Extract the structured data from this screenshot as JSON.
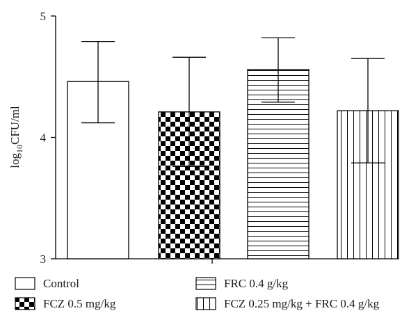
{
  "chart_data": {
    "type": "bar",
    "ylabel": {
      "base": "log",
      "subscript": "10",
      "rest": "CFU/ml"
    },
    "ylim": [
      3,
      5
    ],
    "yticks": [
      "3",
      "4",
      "5"
    ],
    "grid": false,
    "legend_position": "bottom",
    "bar_color": "#000000",
    "series": [
      {
        "name": "Control",
        "pattern": "hollow",
        "value": 4.46,
        "err_upper": 4.79,
        "err_lower": 4.12
      },
      {
        "name": "FCZ 0.5 mg/kg",
        "pattern": "checkerboard",
        "value": 4.21,
        "err_upper": 4.66,
        "err_lower": 3.76
      },
      {
        "name": "FRC 0.4 g/kg",
        "pattern": "horizontal-lines",
        "value": 4.56,
        "err_upper": 4.82,
        "err_lower": 4.29
      },
      {
        "name": "FCZ 0.25 mg/kg + FRC 0.4 g/kg",
        "pattern": "vertical-lines",
        "value": 4.22,
        "err_upper": 4.65,
        "err_lower": 3.79
      }
    ]
  }
}
